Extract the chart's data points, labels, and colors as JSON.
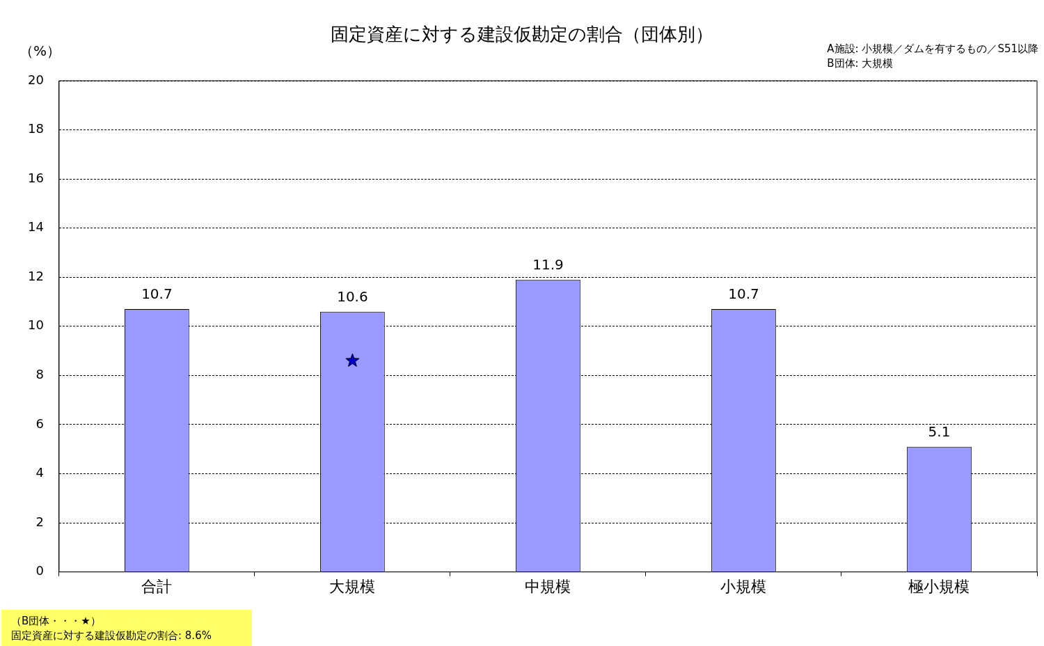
{
  "chart_data": {
    "type": "bar",
    "title": "固定資産に対する建設仮勘定の割合（団体別）",
    "ylabel": "（%）",
    "categories": [
      "合計",
      "大規模",
      "中規模",
      "小規模",
      "極小規模"
    ],
    "series": [
      {
        "color": "#9999ff",
        "values": [
          10.7,
          10.6,
          11.9,
          10.7,
          5.1
        ],
        "value_labels": [
          "10.7",
          "10.6",
          "11.9",
          "10.7",
          "5.1"
        ]
      },
      {
        "type": "scatter",
        "color": "#0000cc",
        "x": [
          "大規模"
        ],
        "values": [
          8.6
        ],
        "marker": "star"
      }
    ],
    "ylim": [
      0,
      20
    ],
    "yticks": [
      0,
      2,
      4,
      6,
      8,
      10,
      12,
      14,
      16,
      18,
      20
    ],
    "grid": "y",
    "legend": false,
    "annotations": [
      "A施設: 小規模／ダムを有するもの／S51以降",
      "B団体: 大規模",
      "（B団体・・・★）",
      "固定資産に対する建設仮勘定の割合: 8.6%"
    ]
  }
}
